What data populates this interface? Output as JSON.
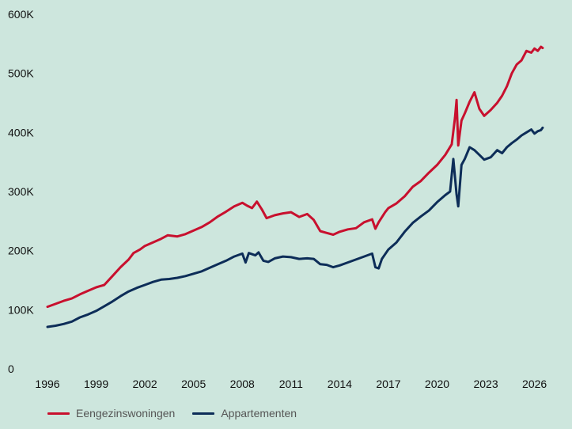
{
  "chart_data": {
    "type": "line",
    "x_type": "year",
    "xlim": [
      1996,
      2026.7
    ],
    "ylim": [
      0,
      600000
    ],
    "x_ticks": [
      1996,
      1999,
      2002,
      2005,
      2008,
      2011,
      2014,
      2017,
      2020,
      2023,
      2026
    ],
    "x_tick_labels": [
      "1996",
      "1999",
      "2002",
      "2005",
      "2008",
      "2011",
      "2014",
      "2017",
      "2020",
      "2023",
      "2026"
    ],
    "y_ticks": [
      0,
      100000,
      200000,
      300000,
      400000,
      500000,
      600000
    ],
    "y_tick_labels": [
      "0",
      "100K",
      "200K",
      "300K",
      "400K",
      "500K",
      "600K"
    ],
    "grid": false,
    "legend_position": "bottom-left",
    "series": [
      {
        "name": "Eengezinswoningen",
        "color": "#c8102e",
        "points": [
          [
            1996.0,
            105000
          ],
          [
            1996.5,
            110000
          ],
          [
            1997.0,
            115000
          ],
          [
            1997.5,
            119000
          ],
          [
            1998.0,
            126000
          ],
          [
            1998.5,
            132000
          ],
          [
            1999.0,
            138000
          ],
          [
            1999.5,
            142000
          ],
          [
            2000.0,
            157000
          ],
          [
            2000.5,
            172000
          ],
          [
            2001.0,
            185000
          ],
          [
            2001.3,
            196000
          ],
          [
            2001.7,
            202000
          ],
          [
            2002.0,
            208000
          ],
          [
            2002.5,
            214000
          ],
          [
            2003.0,
            220000
          ],
          [
            2003.4,
            226000
          ],
          [
            2004.0,
            224000
          ],
          [
            2004.5,
            228000
          ],
          [
            2005.0,
            234000
          ],
          [
            2005.5,
            240000
          ],
          [
            2006.0,
            248000
          ],
          [
            2006.5,
            258000
          ],
          [
            2007.0,
            266000
          ],
          [
            2007.5,
            275000
          ],
          [
            2008.0,
            281000
          ],
          [
            2008.3,
            276000
          ],
          [
            2008.6,
            272000
          ],
          [
            2008.9,
            283000
          ],
          [
            2009.2,
            270000
          ],
          [
            2009.5,
            255000
          ],
          [
            2010.0,
            260000
          ],
          [
            2010.5,
            263000
          ],
          [
            2011.0,
            265000
          ],
          [
            2011.5,
            257000
          ],
          [
            2012.0,
            262000
          ],
          [
            2012.4,
            252000
          ],
          [
            2012.8,
            233000
          ],
          [
            2013.2,
            230000
          ],
          [
            2013.6,
            227000
          ],
          [
            2014.0,
            232000
          ],
          [
            2014.5,
            236000
          ],
          [
            2015.0,
            238000
          ],
          [
            2015.5,
            248000
          ],
          [
            2016.0,
            253000
          ],
          [
            2016.2,
            237000
          ],
          [
            2016.4,
            248000
          ],
          [
            2016.8,
            265000
          ],
          [
            2017.0,
            272000
          ],
          [
            2017.5,
            280000
          ],
          [
            2018.0,
            292000
          ],
          [
            2018.5,
            308000
          ],
          [
            2019.0,
            318000
          ],
          [
            2019.5,
            332000
          ],
          [
            2020.0,
            345000
          ],
          [
            2020.5,
            362000
          ],
          [
            2020.9,
            380000
          ],
          [
            2021.1,
            425000
          ],
          [
            2021.2,
            455000
          ],
          [
            2021.3,
            378000
          ],
          [
            2021.5,
            420000
          ],
          [
            2021.7,
            432000
          ],
          [
            2022.0,
            452000
          ],
          [
            2022.3,
            468000
          ],
          [
            2022.6,
            440000
          ],
          [
            2022.9,
            428000
          ],
          [
            2023.3,
            438000
          ],
          [
            2023.7,
            450000
          ],
          [
            2024.0,
            462000
          ],
          [
            2024.3,
            478000
          ],
          [
            2024.6,
            500000
          ],
          [
            2024.9,
            515000
          ],
          [
            2025.2,
            522000
          ],
          [
            2025.5,
            538000
          ],
          [
            2025.8,
            535000
          ],
          [
            2026.0,
            542000
          ],
          [
            2026.2,
            538000
          ],
          [
            2026.4,
            545000
          ],
          [
            2026.5,
            543000
          ]
        ]
      },
      {
        "name": "Appartementen",
        "color": "#0d2d58",
        "points": [
          [
            1996.0,
            71000
          ],
          [
            1996.5,
            73000
          ],
          [
            1997.0,
            76000
          ],
          [
            1997.5,
            80000
          ],
          [
            1998.0,
            87000
          ],
          [
            1998.5,
            92000
          ],
          [
            1999.0,
            98000
          ],
          [
            1999.5,
            106000
          ],
          [
            2000.0,
            114000
          ],
          [
            2000.5,
            123000
          ],
          [
            2001.0,
            131000
          ],
          [
            2001.5,
            137000
          ],
          [
            2002.0,
            142000
          ],
          [
            2002.5,
            147000
          ],
          [
            2003.0,
            151000
          ],
          [
            2003.5,
            152000
          ],
          [
            2004.0,
            154000
          ],
          [
            2004.5,
            157000
          ],
          [
            2005.0,
            161000
          ],
          [
            2005.5,
            165000
          ],
          [
            2006.0,
            171000
          ],
          [
            2006.5,
            177000
          ],
          [
            2007.0,
            183000
          ],
          [
            2007.5,
            190000
          ],
          [
            2008.0,
            195000
          ],
          [
            2008.2,
            180000
          ],
          [
            2008.4,
            196000
          ],
          [
            2008.8,
            192000
          ],
          [
            2009.0,
            197000
          ],
          [
            2009.3,
            183000
          ],
          [
            2009.6,
            181000
          ],
          [
            2010.0,
            187000
          ],
          [
            2010.5,
            190000
          ],
          [
            2011.0,
            189000
          ],
          [
            2011.5,
            186000
          ],
          [
            2012.0,
            187000
          ],
          [
            2012.4,
            186000
          ],
          [
            2012.8,
            177000
          ],
          [
            2013.2,
            176000
          ],
          [
            2013.6,
            172000
          ],
          [
            2014.0,
            175000
          ],
          [
            2014.5,
            180000
          ],
          [
            2015.0,
            185000
          ],
          [
            2015.5,
            190000
          ],
          [
            2016.0,
            195000
          ],
          [
            2016.2,
            172000
          ],
          [
            2016.4,
            170000
          ],
          [
            2016.6,
            186000
          ],
          [
            2017.0,
            202000
          ],
          [
            2017.5,
            214000
          ],
          [
            2018.0,
            232000
          ],
          [
            2018.5,
            247000
          ],
          [
            2019.0,
            258000
          ],
          [
            2019.5,
            268000
          ],
          [
            2020.0,
            282000
          ],
          [
            2020.5,
            294000
          ],
          [
            2020.8,
            300000
          ],
          [
            2021.0,
            355000
          ],
          [
            2021.2,
            295000
          ],
          [
            2021.3,
            275000
          ],
          [
            2021.5,
            345000
          ],
          [
            2021.7,
            355000
          ],
          [
            2022.0,
            375000
          ],
          [
            2022.3,
            370000
          ],
          [
            2022.6,
            362000
          ],
          [
            2022.9,
            354000
          ],
          [
            2023.3,
            358000
          ],
          [
            2023.7,
            370000
          ],
          [
            2024.0,
            365000
          ],
          [
            2024.3,
            375000
          ],
          [
            2024.6,
            382000
          ],
          [
            2024.9,
            388000
          ],
          [
            2025.2,
            395000
          ],
          [
            2025.5,
            400000
          ],
          [
            2025.8,
            405000
          ],
          [
            2026.0,
            398000
          ],
          [
            2026.2,
            402000
          ],
          [
            2026.4,
            404000
          ],
          [
            2026.5,
            408000
          ]
        ]
      }
    ]
  }
}
